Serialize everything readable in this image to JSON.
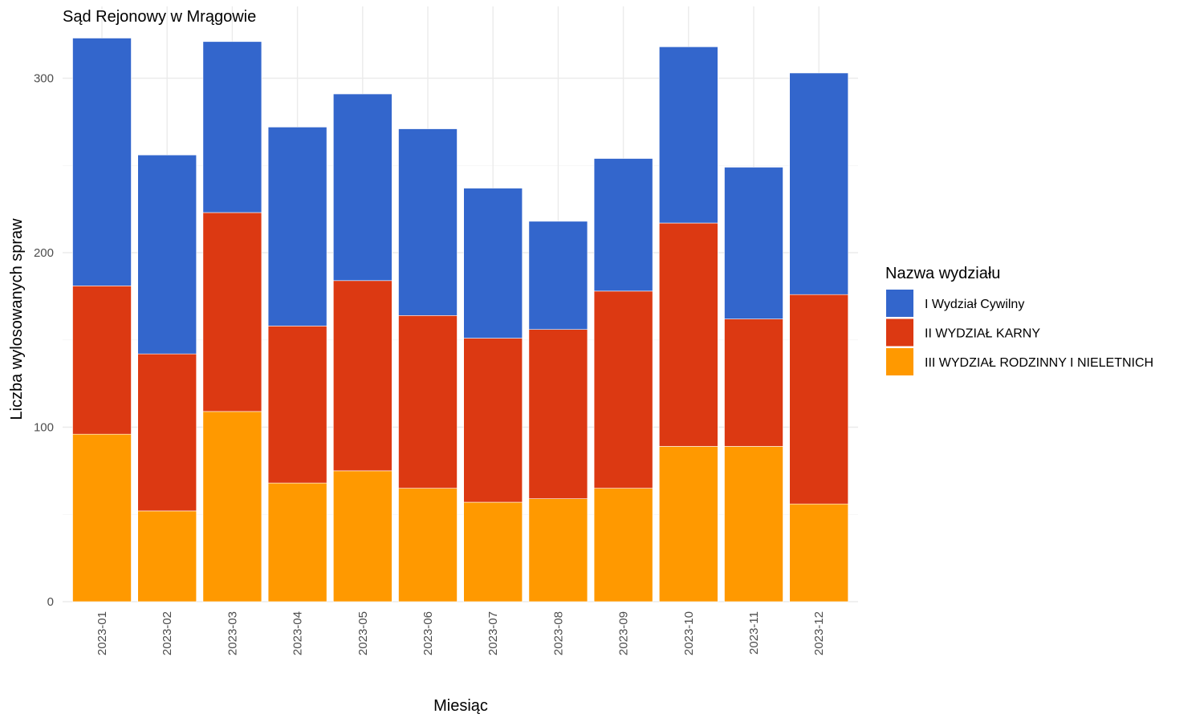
{
  "chart_data": {
    "type": "bar",
    "stacked": true,
    "title": "Sąd Rejonowy w Mrągowie",
    "xlabel": "Miesiąc",
    "ylabel": "Liczba wylosowanych spraw",
    "ylim": [
      0,
      330
    ],
    "y_ticks": [
      0,
      100,
      200,
      300
    ],
    "y_tick_labels": [
      "0",
      "100",
      "200",
      "300"
    ],
    "grid": true,
    "legend_placement": "right",
    "legend_title": "Nazwa wydziału",
    "categories": [
      "2023-01",
      "2023-02",
      "2023-03",
      "2023-04",
      "2023-05",
      "2023-06",
      "2023-07",
      "2023-08",
      "2023-09",
      "2023-10",
      "2023-11",
      "2023-12"
    ],
    "series": [
      {
        "name": "III WYDZIAŁ RODZINNY I NIELETNICH",
        "color": "#FF9900",
        "values": [
          96,
          52,
          109,
          68,
          75,
          65,
          57,
          59,
          65,
          89,
          89,
          56
        ]
      },
      {
        "name": "II WYDZIAŁ KARNY",
        "color": "#DC3912",
        "values": [
          85,
          90,
          114,
          90,
          109,
          99,
          94,
          97,
          113,
          128,
          73,
          120
        ]
      },
      {
        "name": "I Wydział Cywilny",
        "color": "#3366CC",
        "values": [
          142,
          114,
          98,
          114,
          107,
          107,
          86,
          62,
          76,
          101,
          87,
          127
        ]
      }
    ],
    "legend_order": [
      "I Wydział Cywilny",
      "II WYDZIAŁ KARNY",
      "III WYDZIAŁ RODZINNY I NIELETNICH"
    ]
  }
}
